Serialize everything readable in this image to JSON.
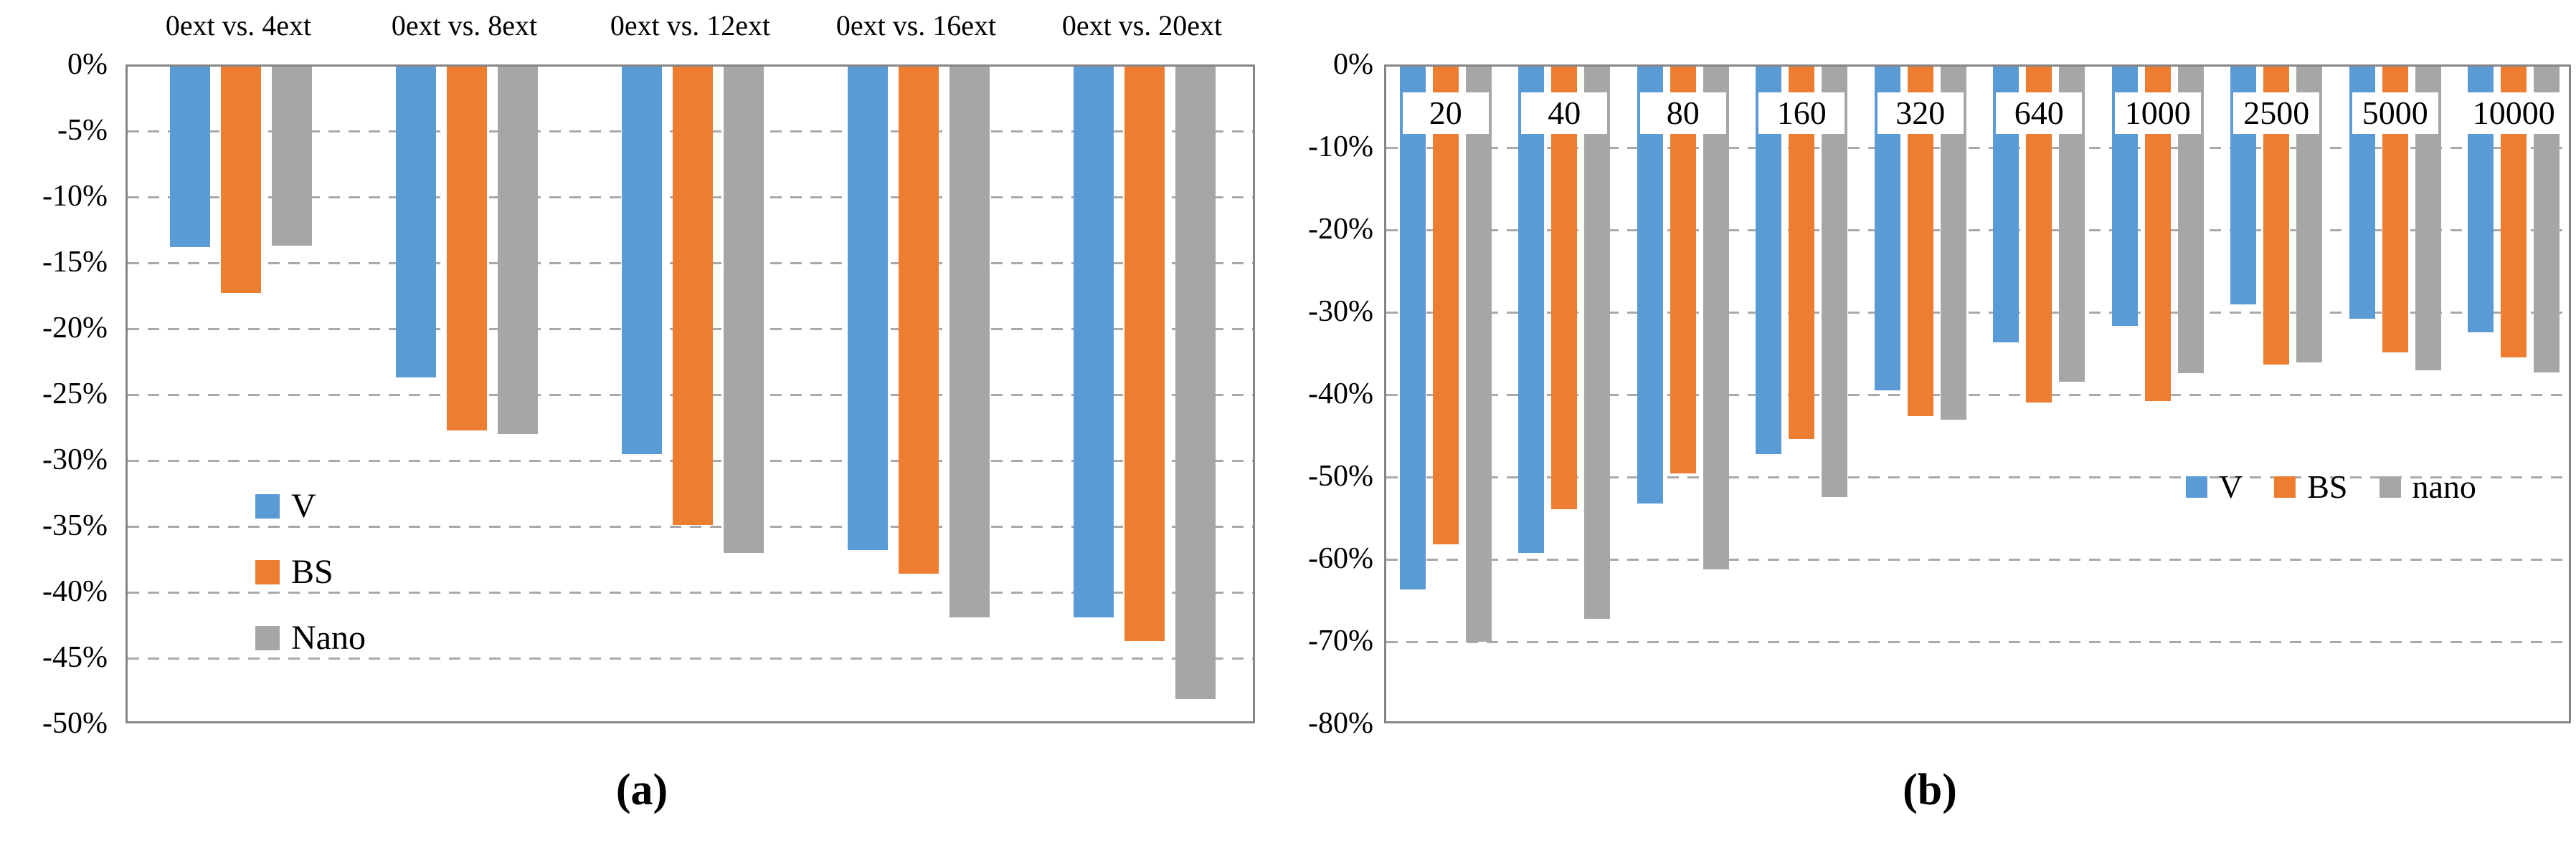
{
  "figure": {
    "caption_a": "(a)",
    "caption_b": "(b)"
  },
  "colors": {
    "v_series": "#5B9BD5",
    "bs_series": "#ED7D31",
    "nano_series": "#A6A6A6",
    "gridline": "#A9A9A9",
    "axis_border": "#858585",
    "label_box_bg": "#FFFFFF",
    "text": "#000000"
  },
  "chart_data": [
    {
      "id": "a",
      "type": "bar",
      "title": "",
      "categories": [
        "0ext vs. 4ext",
        "0ext vs. 8ext",
        "0ext vs. 12ext",
        "0ext vs. 16ext",
        "0ext vs. 20ext"
      ],
      "series": [
        {
          "name": "V",
          "color": "#5B9BD5",
          "values": [
            -13.7,
            -23.6,
            -29.4,
            -36.7,
            -41.8
          ]
        },
        {
          "name": "BS",
          "color": "#ED7D31",
          "values": [
            -17.2,
            -27.6,
            -34.8,
            -38.5,
            -43.6
          ]
        },
        {
          "name": "Nano",
          "color": "#A6A6A6",
          "values": [
            -13.6,
            -27.9,
            -36.9,
            -41.8,
            -48.0
          ]
        }
      ],
      "ylabel": "",
      "xlabel": "",
      "ylim": [
        -50,
        0
      ],
      "ystep": 5,
      "ytick_labels": [
        "0%",
        "-5%",
        "-10%",
        "-15%",
        "-20%",
        "-25%",
        "-30%",
        "-35%",
        "-40%",
        "-45%",
        "-50%"
      ],
      "grid": "dashed-horizontal",
      "category_label_position": "above-plot",
      "legend": {
        "orientation": "vertical",
        "position": "inside-left-middle",
        "entries": [
          "V",
          "BS",
          "Nano"
        ]
      }
    },
    {
      "id": "b",
      "type": "bar",
      "title": "",
      "categories": [
        "20",
        "40",
        "80",
        "160",
        "320",
        "640",
        "1000",
        "2500",
        "5000",
        "10000"
      ],
      "series": [
        {
          "name": "V",
          "color": "#5B9BD5",
          "values": [
            -63.5,
            -59.0,
            -53.0,
            -47.0,
            -39.3,
            -33.5,
            -31.5,
            -28.9,
            -30.6,
            -32.3
          ]
        },
        {
          "name": "BS",
          "color": "#ED7D31",
          "values": [
            -58.0,
            -53.7,
            -49.4,
            -45.2,
            -42.4,
            -40.8,
            -40.6,
            -36.2,
            -34.7,
            -35.3
          ]
        },
        {
          "name": "nano",
          "color": "#A6A6A6",
          "values": [
            -69.8,
            -67.0,
            -61.0,
            -52.3,
            -42.9,
            -38.3,
            -37.2,
            -35.9,
            -36.9,
            -37.1
          ]
        }
      ],
      "ylabel": "",
      "xlabel": "",
      "ylim": [
        -80,
        0
      ],
      "ystep": 10,
      "ytick_labels": [
        "0%",
        "-10%",
        "-20%",
        "-30%",
        "-40%",
        "-50%",
        "-60%",
        "-70%",
        "-80%"
      ],
      "grid": "dashed-horizontal",
      "category_label_position": "inside-top-boxed",
      "legend": {
        "orientation": "horizontal",
        "position": "inside-right-middle",
        "entries": [
          "V",
          "BS",
          "nano"
        ]
      }
    }
  ]
}
